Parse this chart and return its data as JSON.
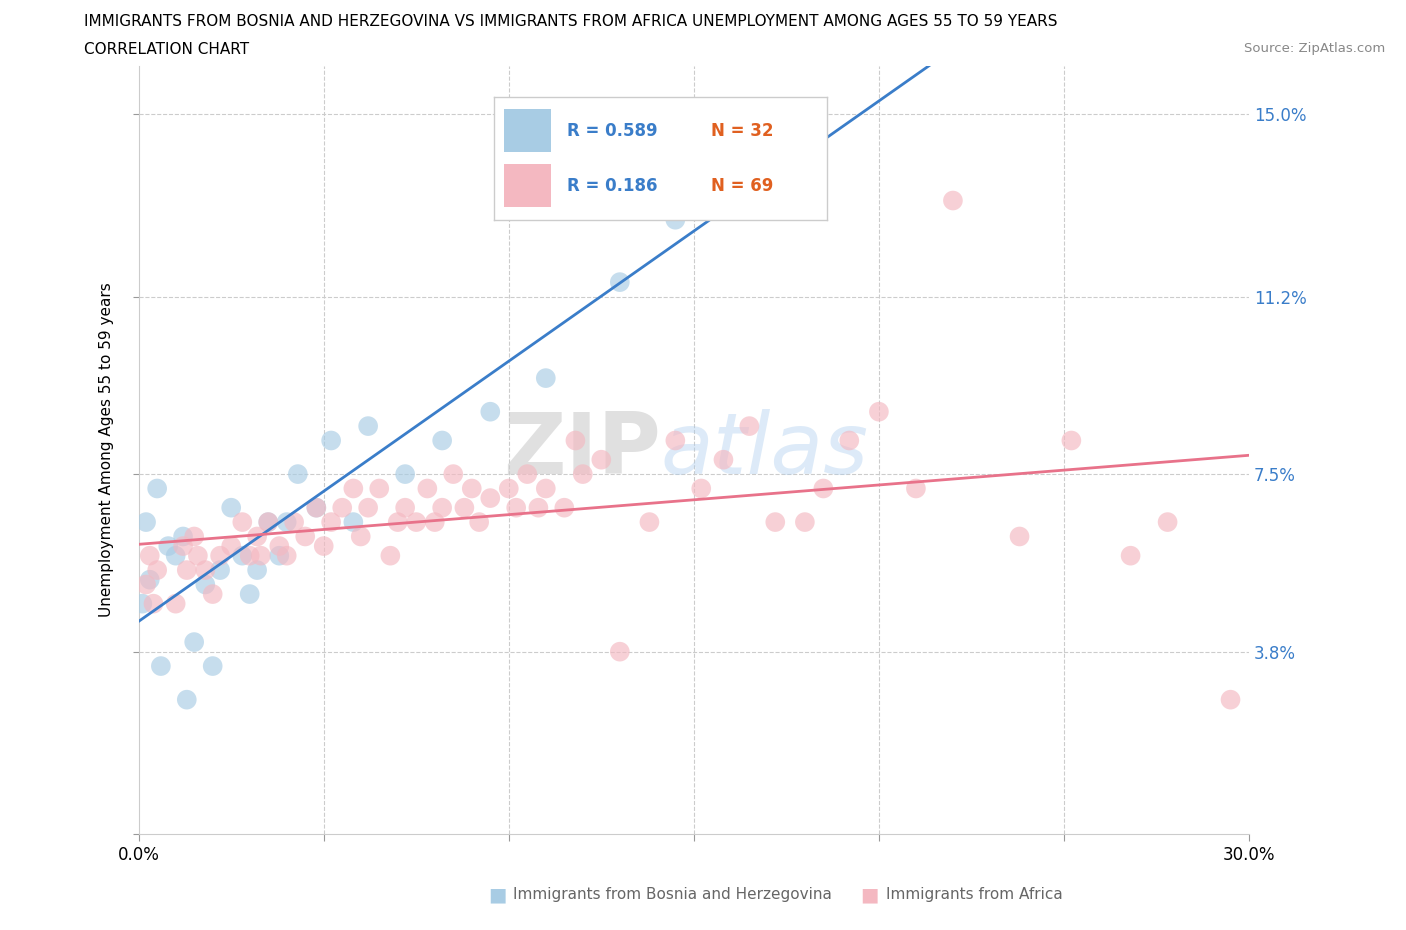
{
  "title_line1": "IMMIGRANTS FROM BOSNIA AND HERZEGOVINA VS IMMIGRANTS FROM AFRICA UNEMPLOYMENT AMONG AGES 55 TO 59 YEARS",
  "title_line2": "CORRELATION CHART",
  "source_text": "Source: ZipAtlas.com",
  "ylabel": "Unemployment Among Ages 55 to 59 years",
  "xlim": [
    0.0,
    0.3
  ],
  "ylim": [
    0.0,
    0.16
  ],
  "bosnia_color": "#a8cce4",
  "africa_color": "#f4b8c1",
  "bosnia_line_color": "#3a7dc9",
  "africa_line_color": "#e8728a",
  "watermark_zip": "ZIP",
  "watermark_atlas": "atlas",
  "legend_R_bosnia": "R = 0.589",
  "legend_N_bosnia": "N = 32",
  "legend_R_africa": "R = 0.186",
  "legend_N_africa": "N = 69",
  "R_color": "#3a7dc9",
  "N_color": "#e06020",
  "ytick_vals": [
    0.0,
    0.038,
    0.075,
    0.112,
    0.15
  ],
  "ytick_labels": [
    "",
    "3.8%",
    "7.5%",
    "11.2%",
    "15.0%"
  ],
  "xtick_vals": [
    0.0,
    0.05,
    0.1,
    0.15,
    0.2,
    0.25,
    0.3
  ],
  "bosnia_x": [
    0.001,
    0.002,
    0.003,
    0.005,
    0.006,
    0.008,
    0.01,
    0.012,
    0.013,
    0.015,
    0.018,
    0.02,
    0.022,
    0.025,
    0.028,
    0.03,
    0.032,
    0.035,
    0.038,
    0.04,
    0.043,
    0.048,
    0.052,
    0.058,
    0.062,
    0.072,
    0.082,
    0.095,
    0.11,
    0.13,
    0.145,
    0.16
  ],
  "bosnia_y": [
    0.048,
    0.065,
    0.053,
    0.072,
    0.035,
    0.06,
    0.058,
    0.062,
    0.028,
    0.04,
    0.052,
    0.035,
    0.055,
    0.068,
    0.058,
    0.05,
    0.055,
    0.065,
    0.058,
    0.065,
    0.075,
    0.068,
    0.082,
    0.065,
    0.085,
    0.075,
    0.082,
    0.088,
    0.095,
    0.115,
    0.128,
    0.148
  ],
  "africa_x": [
    0.002,
    0.003,
    0.004,
    0.005,
    0.01,
    0.012,
    0.013,
    0.015,
    0.016,
    0.018,
    0.02,
    0.022,
    0.025,
    0.028,
    0.03,
    0.032,
    0.033,
    0.035,
    0.038,
    0.04,
    0.042,
    0.045,
    0.048,
    0.05,
    0.052,
    0.055,
    0.058,
    0.06,
    0.062,
    0.065,
    0.068,
    0.07,
    0.072,
    0.075,
    0.078,
    0.08,
    0.082,
    0.085,
    0.088,
    0.09,
    0.092,
    0.095,
    0.1,
    0.102,
    0.105,
    0.108,
    0.11,
    0.115,
    0.118,
    0.12,
    0.125,
    0.13,
    0.138,
    0.145,
    0.152,
    0.158,
    0.165,
    0.172,
    0.18,
    0.185,
    0.192,
    0.2,
    0.21,
    0.22,
    0.238,
    0.252,
    0.268,
    0.278,
    0.295
  ],
  "africa_y": [
    0.052,
    0.058,
    0.048,
    0.055,
    0.048,
    0.06,
    0.055,
    0.062,
    0.058,
    0.055,
    0.05,
    0.058,
    0.06,
    0.065,
    0.058,
    0.062,
    0.058,
    0.065,
    0.06,
    0.058,
    0.065,
    0.062,
    0.068,
    0.06,
    0.065,
    0.068,
    0.072,
    0.062,
    0.068,
    0.072,
    0.058,
    0.065,
    0.068,
    0.065,
    0.072,
    0.065,
    0.068,
    0.075,
    0.068,
    0.072,
    0.065,
    0.07,
    0.072,
    0.068,
    0.075,
    0.068,
    0.072,
    0.068,
    0.082,
    0.075,
    0.078,
    0.038,
    0.065,
    0.082,
    0.072,
    0.078,
    0.085,
    0.065,
    0.065,
    0.072,
    0.082,
    0.088,
    0.072,
    0.132,
    0.062,
    0.082,
    0.058,
    0.065,
    0.028
  ]
}
